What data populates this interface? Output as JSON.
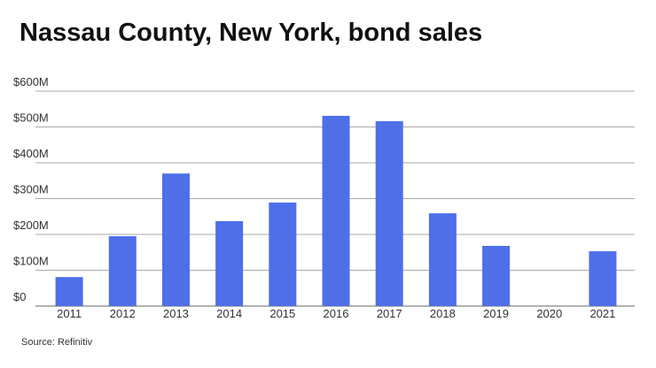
{
  "chart_data": {
    "type": "bar",
    "title": "Nassau County, New York, bond sales",
    "categories": [
      "2011",
      "2012",
      "2013",
      "2014",
      "2015",
      "2016",
      "2017",
      "2018",
      "2019",
      "2020",
      "2021"
    ],
    "values": [
      81,
      195,
      370,
      237,
      289,
      531,
      516,
      259,
      168,
      0,
      153
    ],
    "color": "#4f6fe8",
    "ylim": [
      0,
      600
    ],
    "yticks": [
      {
        "value": 0,
        "label": "$0"
      },
      {
        "value": 100,
        "label": "$100M"
      },
      {
        "value": 200,
        "label": "$200M"
      },
      {
        "value": 300,
        "label": "$300M"
      },
      {
        "value": 400,
        "label": "$400M"
      },
      {
        "value": 500,
        "label": "$500M"
      },
      {
        "value": 600,
        "label": "$600M"
      }
    ],
    "grid": true,
    "source": "Source: Refinitiv"
  }
}
